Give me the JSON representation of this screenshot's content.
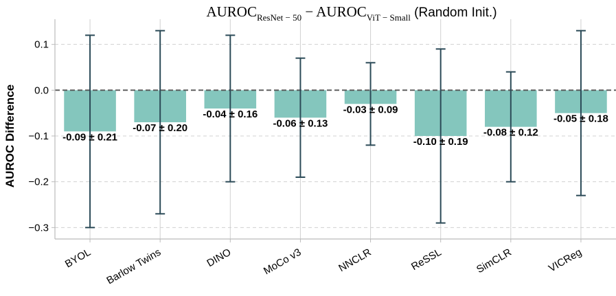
{
  "chart_data": {
    "type": "bar",
    "title": {
      "prefix": "AUROC",
      "sub1": "ResNet − 50",
      "minus": " − AUROC",
      "sub2": "ViT − Small",
      "suffix": " (Random Init.)"
    },
    "xlabel": "",
    "ylabel": "AUROC Difference",
    "ylim": [
      -0.325,
      0.155
    ],
    "yticks": [
      0.1,
      0.0,
      -0.1,
      -0.2,
      -0.3
    ],
    "ytick_labels": [
      "0.1",
      "0.0",
      "−0.1",
      "−0.2",
      "−0.3"
    ],
    "categories": [
      "BYOL",
      "Barlow Twins",
      "DINO",
      "MoCo v3",
      "NNCLR",
      "ReSSL",
      "SimCLR",
      "VICReg"
    ],
    "values": [
      -0.09,
      -0.07,
      -0.04,
      -0.06,
      -0.03,
      -0.1,
      -0.08,
      -0.05
    ],
    "errors": [
      0.21,
      0.2,
      0.16,
      0.13,
      0.09,
      0.19,
      0.12,
      0.18
    ],
    "data_labels": [
      "-0.09 ± 0.21",
      "-0.07 ± 0.20",
      "-0.04 ± 0.16",
      "-0.06 ± 0.13",
      "-0.03 ± 0.09",
      "-0.10 ± 0.19",
      "-0.08 ± 0.12",
      "-0.05 ± 0.18"
    ],
    "grid": true,
    "zero_line": "dashed",
    "colors": {
      "bar": "#84c6bd",
      "errorbar": "#2b4a57",
      "grid": "#d0d0d0",
      "zero_line": "#555555",
      "axis": "#bbbbbb"
    }
  }
}
